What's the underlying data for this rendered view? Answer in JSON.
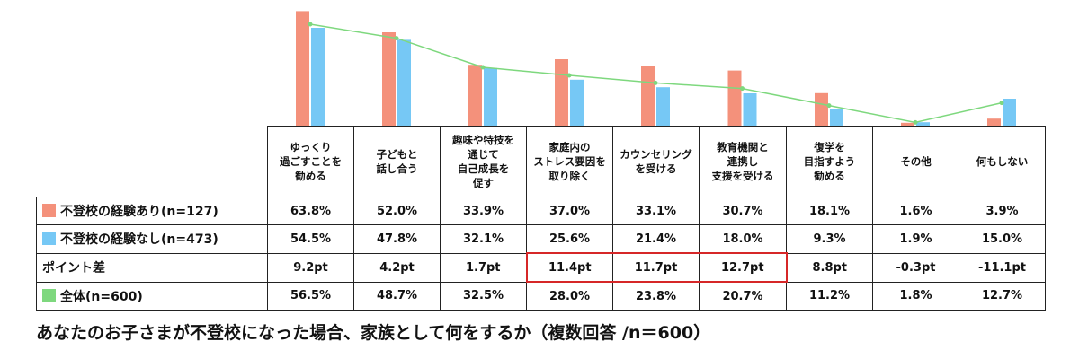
{
  "chart_data": {
    "type": "bar",
    "categories": [
      "ゆっくり\n過ごすことを\n勧める",
      "子どもと\n話し合う",
      "趣味や特技を\n通じて\n自己成長を\n促す",
      "家庭内の\nストレス要因を\n取り除く",
      "カウンセリング\nを受ける",
      "教育機関と\n連携し\n支援を受ける",
      "復学を\n目指すよう\n勧める",
      "その他",
      "何もしない"
    ],
    "series": [
      {
        "name": "不登校の経験あり(n=127)",
        "type": "bar",
        "color": "#f4917b",
        "values": [
          63.8,
          52.0,
          33.9,
          37.0,
          33.1,
          30.7,
          18.1,
          1.6,
          3.9
        ]
      },
      {
        "name": "不登校の経験なし(n=473)",
        "type": "bar",
        "color": "#76c8f5",
        "values": [
          54.5,
          47.8,
          32.1,
          25.6,
          21.4,
          18.0,
          9.3,
          1.9,
          15.0
        ]
      },
      {
        "name": "全体(n=600)",
        "type": "line",
        "color": "#7ed87e",
        "values": [
          56.5,
          48.7,
          32.5,
          28.0,
          23.8,
          20.7,
          11.2,
          1.8,
          12.7
        ]
      }
    ],
    "ylim": [
      0,
      65
    ],
    "grid": false
  },
  "table": {
    "rows": [
      {
        "label": "不登校の経験あり(n=127)",
        "swatch": "#f4917b",
        "cells": [
          "63.8%",
          "52.0%",
          "33.9%",
          "37.0%",
          "33.1%",
          "30.7%",
          "18.1%",
          "1.6%",
          "3.9%"
        ]
      },
      {
        "label": "不登校の経験なし(n=473)",
        "swatch": "#76c8f5",
        "cells": [
          "54.5%",
          "47.8%",
          "32.1%",
          "25.6%",
          "21.4%",
          "18.0%",
          "9.3%",
          "1.9%",
          "15.0%"
        ]
      },
      {
        "label": "ポイント差",
        "swatch": "",
        "cells": [
          "9.2pt",
          "4.2pt",
          "1.7pt",
          "11.4pt",
          "11.7pt",
          "12.7pt",
          "8.8pt",
          "-0.3pt",
          "-11.1pt"
        ],
        "highlighted": [
          3,
          4,
          5
        ],
        "highlight_color": "#d62728"
      },
      {
        "label": "全体(n=600)",
        "swatch": "#7ed87e",
        "cells": [
          "56.5%",
          "48.7%",
          "32.5%",
          "28.0%",
          "23.8%",
          "20.7%",
          "11.2%",
          "1.8%",
          "12.7%"
        ]
      }
    ]
  },
  "caption": "あなたのお子さまが不登校になった場合、家族として何をするか（複数回答 /n＝600）"
}
